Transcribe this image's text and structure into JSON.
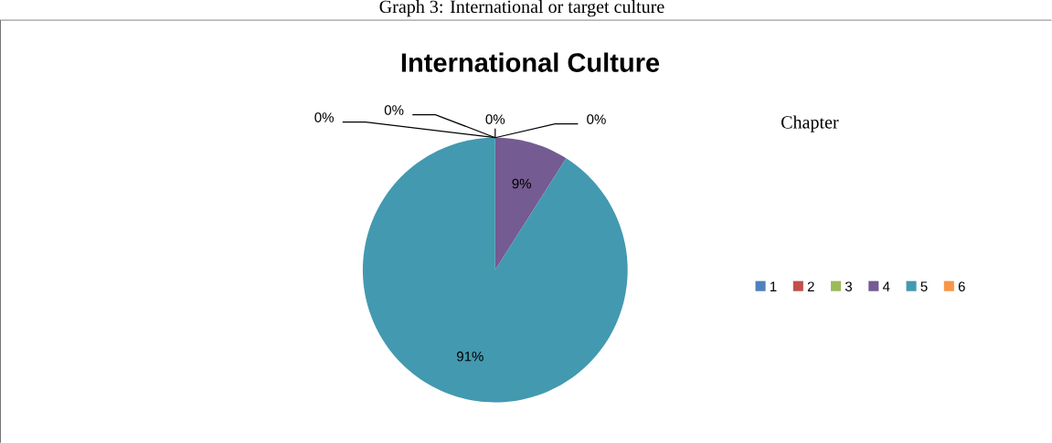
{
  "chart_data": {
    "type": "pie",
    "title": "International Culture",
    "legend_title": "Chapter",
    "categories": [
      "1",
      "2",
      "3",
      "4",
      "5",
      "6"
    ],
    "values": [
      0,
      0,
      0,
      9,
      91,
      0
    ],
    "value_labels": [
      "0%",
      "0%",
      "0%",
      "9%",
      "91%",
      "0%"
    ],
    "colors": [
      "#4f81bd",
      "#c0504d",
      "#9bbb59",
      "#745b91",
      "#4399b0",
      "#f79646"
    ],
    "legend": "right",
    "annotations": [
      "Graph 3: International or target culture"
    ]
  }
}
